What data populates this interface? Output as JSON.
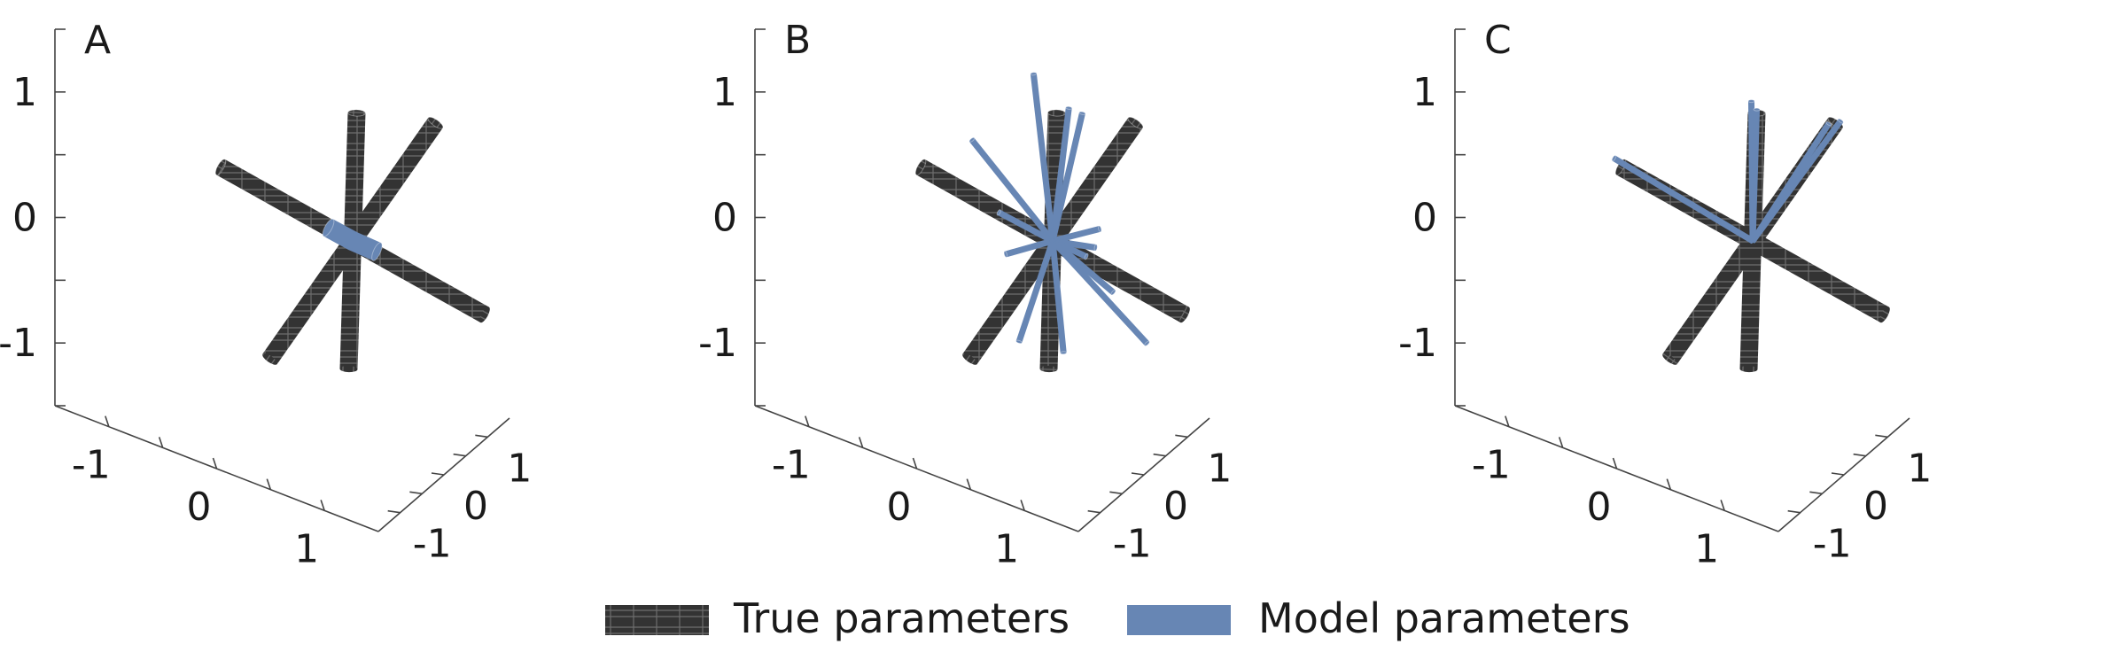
{
  "legend": {
    "true_label": "True parameters",
    "model_label": "Model parameters"
  },
  "colors": {
    "true": "#333333",
    "true_grid": "#6e6e6e",
    "model": "#6786b4",
    "axis": "#444444"
  },
  "chart_data": [
    {
      "type": "3d-lines",
      "panel_label": "A",
      "tick_labels": {
        "z": [
          "1",
          "0",
          "-1"
        ],
        "x": [
          "-1",
          "0",
          "1"
        ],
        "y": [
          "-1",
          "0",
          "1"
        ]
      },
      "true_lines": [
        {
          "dir": [
            -1.0,
            0.05,
            0.15
          ]
        },
        {
          "dir": [
            0.05,
            -0.05,
            1.05
          ]
        },
        {
          "dir": [
            0.25,
            0.9,
            0.7
          ]
        }
      ],
      "model_lines": [
        {
          "dir": [
            -0.18,
            0.0,
            0.03
          ]
        },
        {
          "dir": [
            0.18,
            0.0,
            -0.01
          ]
        }
      ]
    },
    {
      "type": "3d-lines",
      "panel_label": "B",
      "tick_labels": {
        "z": [
          "1",
          "0",
          "-1"
        ],
        "x": [
          "-1",
          "0",
          "1"
        ],
        "y": [
          "-1",
          "0",
          "1"
        ]
      },
      "true_lines": [
        {
          "dir": [
            -1.0,
            0.05,
            0.15
          ]
        },
        {
          "dir": [
            0.05,
            -0.05,
            1.05
          ]
        },
        {
          "dir": [
            0.25,
            0.9,
            0.7
          ]
        }
      ],
      "model_lines": [
        {
          "dir": [
            -0.15,
            0.02,
            1.25
          ]
        },
        {
          "dir": [
            0.12,
            0.0,
            1.1
          ]
        },
        {
          "dir": [
            0.22,
            0.0,
            1.1
          ]
        },
        {
          "dir": [
            -0.6,
            0.0,
            0.55
          ]
        },
        {
          "dir": [
            0.35,
            0.0,
            0.24
          ]
        },
        {
          "dir": [
            0.32,
            0.0,
            0.08
          ]
        },
        {
          "dir": [
            -0.4,
            0.0,
            0.06
          ]
        },
        {
          "dir": [
            0.25,
            0.0,
            -0.02
          ]
        },
        {
          "dir": [
            0.45,
            0.0,
            -0.22
          ]
        },
        {
          "dir": [
            0.7,
            0.0,
            -0.52
          ]
        },
        {
          "dir": [
            -0.35,
            0.0,
            -0.25
          ]
        },
        {
          "dir": [
            -0.25,
            0.0,
            -0.9
          ]
        },
        {
          "dir": [
            0.08,
            0.0,
            -0.85
          ]
        }
      ]
    },
    {
      "type": "3d-lines",
      "panel_label": "C",
      "tick_labels": {
        "z": [
          "1",
          "0",
          "-1"
        ],
        "x": [
          "-1",
          "0",
          "1"
        ],
        "y": [
          "-1",
          "0",
          "1"
        ]
      },
      "true_lines": [
        {
          "dir": [
            -1.0,
            0.05,
            0.15
          ]
        },
        {
          "dir": [
            0.05,
            -0.05,
            1.05
          ]
        },
        {
          "dir": [
            0.25,
            0.9,
            0.7
          ]
        }
      ],
      "model_lines": [
        {
          "dir": [
            -1.05,
            0.05,
            0.2
          ]
        },
        {
          "dir": [
            -0.01,
            0.0,
            1.1
          ]
        },
        {
          "dir": [
            0.03,
            0.0,
            1.05
          ]
        },
        {
          "dir": [
            0.28,
            0.92,
            0.72
          ]
        },
        {
          "dir": [
            0.22,
            0.85,
            0.7
          ]
        }
      ]
    }
  ]
}
